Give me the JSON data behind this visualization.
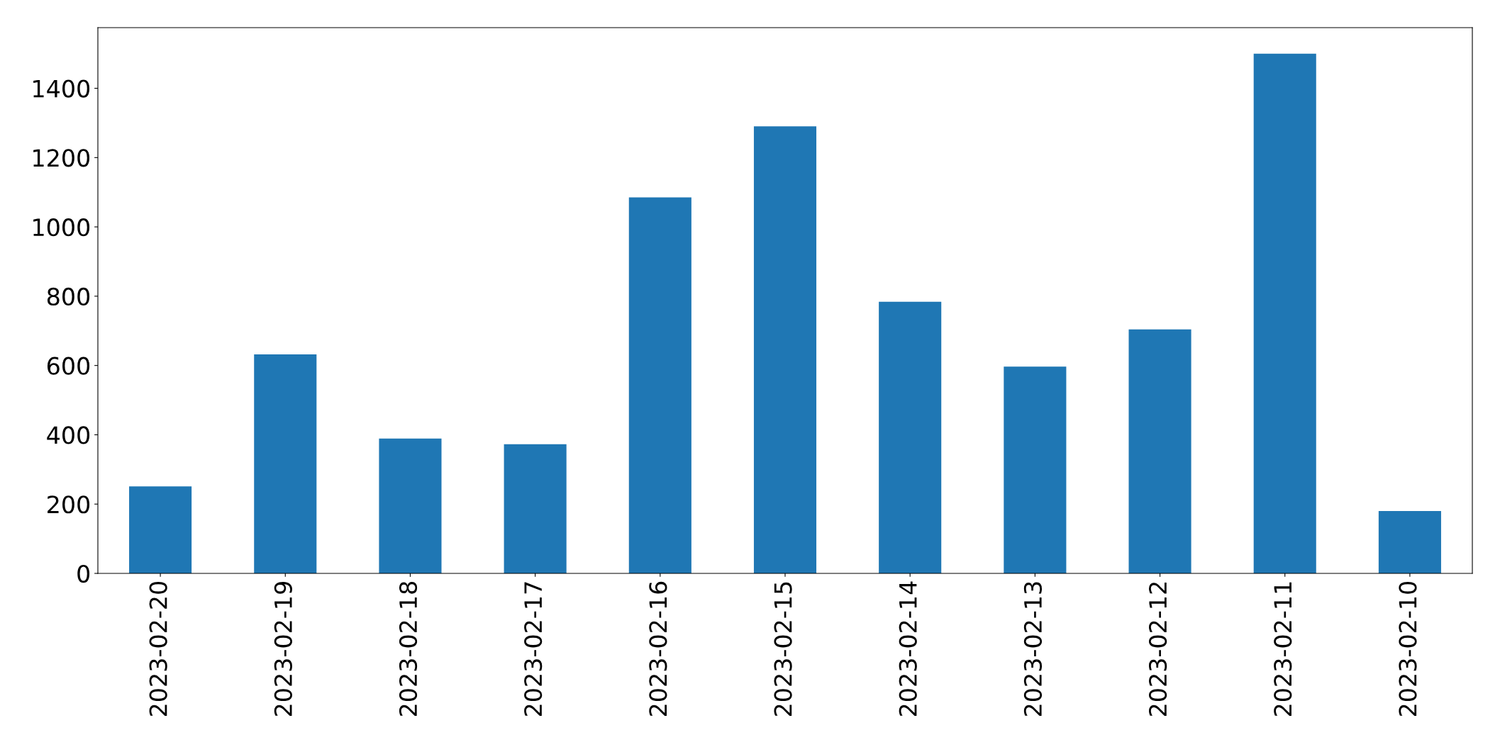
{
  "chart_data": {
    "type": "bar",
    "categories": [
      "2023-02-20",
      "2023-02-19",
      "2023-02-18",
      "2023-02-17",
      "2023-02-16",
      "2023-02-15",
      "2023-02-14",
      "2023-02-13",
      "2023-02-12",
      "2023-02-11",
      "2023-02-10"
    ],
    "values": [
      251,
      632,
      389,
      373,
      1085,
      1290,
      784,
      597,
      704,
      1500,
      180
    ],
    "color": "#1f77b4",
    "ylim": [
      0,
      1575
    ],
    "yticks": [
      0,
      200,
      400,
      600,
      800,
      1000,
      1200,
      1400
    ],
    "grid": false,
    "legend": false
  }
}
